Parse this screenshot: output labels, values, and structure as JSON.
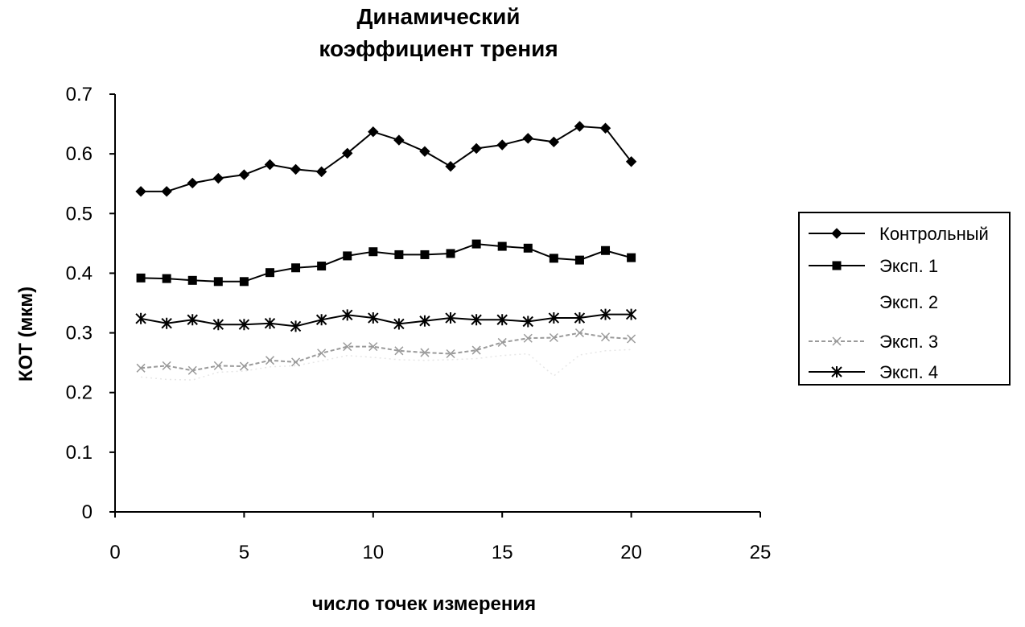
{
  "chart_data": {
    "type": "line",
    "title_lines": [
      "Динамический",
      "коэффициент трения"
    ],
    "xlabel": "число точек измерения",
    "ylabel": "КОТ (мкм)",
    "xlim": [
      0,
      25
    ],
    "ylim": [
      0,
      0.7
    ],
    "x_ticks": [
      "0",
      "5",
      "10",
      "15",
      "20",
      "25"
    ],
    "y_ticks": [
      "0",
      "0.1",
      "0.2",
      "0.3",
      "0.4",
      "0.5",
      "0.6",
      "0.7"
    ],
    "grid": false,
    "legend_position": "right",
    "x": [
      1,
      2,
      3,
      4,
      5,
      6,
      7,
      8,
      9,
      10,
      11,
      12,
      13,
      14,
      15,
      16,
      17,
      18,
      19,
      20
    ],
    "series": [
      {
        "name": "Контрольный",
        "marker": "diamond",
        "color": "#000000",
        "values": [
          0.537,
          0.537,
          0.551,
          0.559,
          0.565,
          0.582,
          0.574,
          0.57,
          0.601,
          0.637,
          0.623,
          0.604,
          0.579,
          0.609,
          0.615,
          0.626,
          0.62,
          0.646,
          0.643,
          0.587
        ]
      },
      {
        "name": "Эксп. 1",
        "marker": "square",
        "color": "#000000",
        "values": [
          0.392,
          0.391,
          0.388,
          0.386,
          0.386,
          0.401,
          0.409,
          0.412,
          0.429,
          0.436,
          0.431,
          0.431,
          0.433,
          0.449,
          0.445,
          0.442,
          0.425,
          0.422,
          0.438,
          0.426
        ]
      },
      {
        "name": "Эксп. 2",
        "marker": "none",
        "color": "#e6e6e6",
        "values": [
          0.226,
          0.222,
          0.221,
          0.234,
          0.236,
          0.243,
          0.245,
          0.253,
          0.262,
          0.259,
          0.255,
          0.254,
          0.255,
          0.257,
          0.262,
          0.265,
          0.228,
          0.263,
          0.27,
          0.272
        ]
      },
      {
        "name": "Эксп. 3",
        "marker": "x",
        "color": "#9a9a9a",
        "values": [
          0.241,
          0.245,
          0.237,
          0.245,
          0.244,
          0.254,
          0.251,
          0.266,
          0.277,
          0.277,
          0.27,
          0.267,
          0.265,
          0.271,
          0.284,
          0.291,
          0.292,
          0.3,
          0.293,
          0.29
        ]
      },
      {
        "name": "Эксп. 4",
        "marker": "star",
        "color": "#000000",
        "values": [
          0.324,
          0.316,
          0.322,
          0.314,
          0.314,
          0.316,
          0.311,
          0.322,
          0.33,
          0.325,
          0.315,
          0.32,
          0.325,
          0.322,
          0.322,
          0.319,
          0.325,
          0.325,
          0.331,
          0.331
        ]
      }
    ]
  }
}
